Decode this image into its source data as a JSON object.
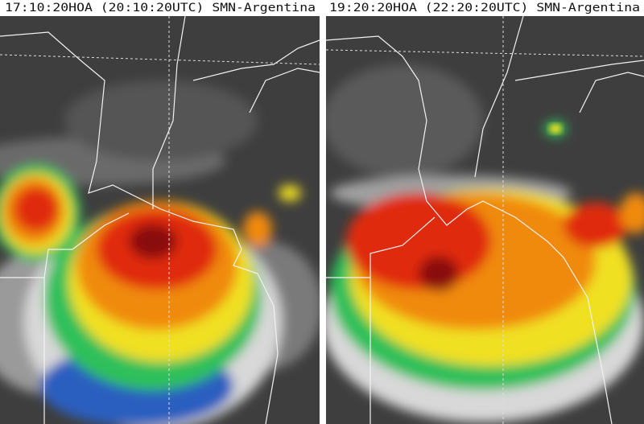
{
  "panels": [
    {
      "timestamp": "17:10:20HOA (20:10:20UTC) SMN-Argentina"
    },
    {
      "timestamp": "19:20:20HOA (22:20:20UTC) SMN-Argentina"
    }
  ]
}
